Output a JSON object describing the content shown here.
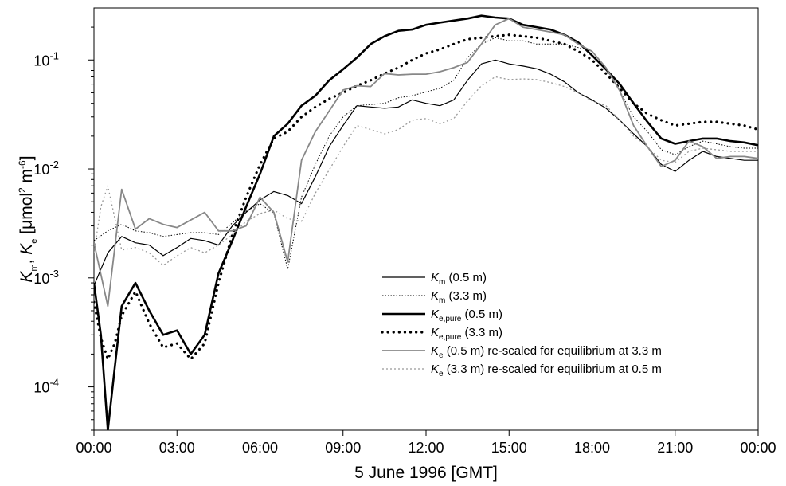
{
  "chart_data": {
    "type": "line",
    "title": "",
    "xlabel": "5 June 1996 [GMT]",
    "ylabel": {
      "base1": "K",
      "sub1": "m",
      "sep": ", ",
      "base2": "K",
      "sub2": "e",
      "unit_pre": " [μmol",
      "unit_sup1": "2",
      "unit_mid": " m",
      "unit_sup2": "-6",
      "unit_post": "]"
    },
    "xlim": [
      0,
      24
    ],
    "ylim": [
      4e-05,
      0.3
    ],
    "yscale": "log",
    "x_ticks": [
      "00:00",
      "03:00",
      "06:00",
      "09:00",
      "12:00",
      "15:00",
      "18:00",
      "21:00",
      "00:00"
    ],
    "y_ticks": [
      {
        "value": 0.0001,
        "base": "10",
        "exp": "-4"
      },
      {
        "value": 0.001,
        "base": "10",
        "exp": "-3"
      },
      {
        "value": 0.01,
        "base": "10",
        "exp": "-2"
      },
      {
        "value": 0.1,
        "base": "10",
        "exp": "-1"
      }
    ],
    "legend_position": "lower-right",
    "series": [
      {
        "name": "Km (0.5 m)",
        "legend": {
          "base": "K",
          "sub": "m",
          "rest": " (0.5 m)"
        },
        "color": "#000000",
        "width": 1.2,
        "dash": "",
        "x": [
          0,
          0.5,
          1,
          1.5,
          2,
          2.5,
          3,
          3.5,
          4,
          4.5,
          5,
          5.5,
          6,
          6.5,
          7,
          7.5,
          8,
          8.5,
          9,
          9.5,
          10,
          10.5,
          11,
          11.5,
          12,
          12.5,
          13,
          13.5,
          14,
          14.5,
          15,
          15.5,
          16,
          16.5,
          17,
          17.5,
          18,
          18.5,
          19,
          19.5,
          20,
          20.5,
          21,
          21.5,
          22,
          22.5,
          23,
          23.5,
          24
        ],
        "y": [
          0.00085,
          0.0017,
          0.0024,
          0.0021,
          0.002,
          0.0016,
          0.0019,
          0.0023,
          0.0022,
          0.002,
          0.003,
          0.004,
          0.0052,
          0.0062,
          0.0057,
          0.0048,
          0.0085,
          0.016,
          0.025,
          0.038,
          0.037,
          0.036,
          0.037,
          0.043,
          0.04,
          0.038,
          0.043,
          0.065,
          0.092,
          0.1,
          0.092,
          0.088,
          0.083,
          0.074,
          0.063,
          0.05,
          0.043,
          0.036,
          0.028,
          0.021,
          0.016,
          0.011,
          0.0095,
          0.012,
          0.0145,
          0.013,
          0.0125,
          0.012,
          0.012
        ]
      },
      {
        "name": "Km (3.3 m)",
        "legend": {
          "base": "K",
          "sub": "m",
          "rest": " (3.3 m)"
        },
        "color": "#000000",
        "width": 1.0,
        "dash": "1.5,2",
        "x": [
          0,
          0.5,
          1,
          1.5,
          2,
          2.5,
          3,
          3.5,
          4,
          4.5,
          5,
          5.5,
          6,
          6.5,
          7,
          7.5,
          8,
          8.5,
          9,
          9.5,
          10,
          10.5,
          11,
          11.5,
          12,
          12.5,
          13,
          13.5,
          14,
          14.5,
          15,
          15.5,
          16,
          16.5,
          17,
          17.5,
          18,
          18.5,
          19,
          19.5,
          20,
          20.5,
          21,
          21.5,
          22,
          22.5,
          23,
          23.5,
          24
        ],
        "y": [
          0.0022,
          0.0027,
          0.0031,
          0.0027,
          0.0026,
          0.0024,
          0.0025,
          0.0026,
          0.0026,
          0.0025,
          0.0032,
          0.0041,
          0.0048,
          0.0039,
          0.0012,
          0.0055,
          0.011,
          0.02,
          0.03,
          0.038,
          0.039,
          0.04,
          0.045,
          0.047,
          0.051,
          0.055,
          0.065,
          0.105,
          0.14,
          0.16,
          0.15,
          0.15,
          0.14,
          0.14,
          0.14,
          0.13,
          0.12,
          0.085,
          0.052,
          0.03,
          0.022,
          0.015,
          0.0135,
          0.016,
          0.018,
          0.017,
          0.016,
          0.0155,
          0.0155
        ]
      },
      {
        "name": "Ke,pure (0.5 m)",
        "legend": {
          "base": "K",
          "sub": "e,pure",
          "rest": " (0.5 m)"
        },
        "color": "#000000",
        "width": 2.6,
        "dash": "",
        "x": [
          0,
          0.25,
          0.5,
          0.75,
          1,
          1.5,
          2,
          2.5,
          3,
          3.5,
          4,
          4.5,
          5,
          5.5,
          6,
          6.5,
          7,
          7.5,
          8,
          8.5,
          9,
          9.5,
          10,
          10.5,
          11,
          11.5,
          12,
          12.5,
          13,
          13.5,
          14,
          14.5,
          15,
          15.5,
          16,
          16.5,
          17,
          17.5,
          18,
          18.5,
          19,
          19.5,
          20,
          20.5,
          21,
          21.5,
          22,
          22.5,
          23,
          23.5,
          24
        ],
        "y": [
          0.0009,
          0.0003,
          4e-05,
          0.00015,
          0.00055,
          0.0009,
          0.0005,
          0.0003,
          0.00033,
          0.0002,
          0.0003,
          0.0011,
          0.0022,
          0.0045,
          0.009,
          0.02,
          0.026,
          0.038,
          0.047,
          0.065,
          0.082,
          0.105,
          0.14,
          0.165,
          0.185,
          0.19,
          0.21,
          0.22,
          0.23,
          0.24,
          0.255,
          0.245,
          0.24,
          0.21,
          0.2,
          0.19,
          0.17,
          0.145,
          0.11,
          0.082,
          0.06,
          0.04,
          0.027,
          0.019,
          0.017,
          0.018,
          0.019,
          0.019,
          0.018,
          0.0175,
          0.0165
        ]
      },
      {
        "name": "Ke,pure (3.3 m)",
        "legend": {
          "base": "K",
          "sub": "e,pure",
          "rest": " (3.3 m)"
        },
        "color": "#000000",
        "width": 3.2,
        "dash": "0.1,7",
        "x": [
          0,
          0.25,
          0.5,
          0.75,
          1,
          1.5,
          2,
          2.5,
          3,
          3.5,
          4,
          4.5,
          5,
          5.5,
          6,
          6.5,
          7,
          7.5,
          8,
          8.5,
          9,
          9.5,
          10,
          10.5,
          11,
          11.5,
          12,
          12.5,
          13,
          13.5,
          14,
          14.5,
          15,
          15.5,
          16,
          16.5,
          17,
          17.5,
          18,
          18.5,
          19,
          19.5,
          20,
          20.5,
          21,
          21.5,
          22,
          22.5,
          23,
          23.5,
          24
        ],
        "y": [
          0.0006,
          0.00028,
          0.00018,
          0.00025,
          0.00045,
          0.00075,
          0.00038,
          0.00023,
          0.00025,
          0.00018,
          0.00025,
          0.0009,
          0.0025,
          0.0055,
          0.011,
          0.019,
          0.022,
          0.03,
          0.037,
          0.044,
          0.05,
          0.058,
          0.065,
          0.075,
          0.085,
          0.1,
          0.115,
          0.125,
          0.14,
          0.155,
          0.16,
          0.165,
          0.17,
          0.165,
          0.16,
          0.15,
          0.14,
          0.12,
          0.1,
          0.075,
          0.055,
          0.04,
          0.032,
          0.028,
          0.025,
          0.026,
          0.027,
          0.027,
          0.026,
          0.025,
          0.023
        ]
      },
      {
        "name": "Ke (0.5 m) re-scaled for equilibrium at 3.3 m",
        "legend": {
          "base": "K",
          "sub": "e",
          "rest": " (0.5 m) re-scaled for equilibrium at 3.3 m"
        },
        "color": "#888888",
        "width": 1.8,
        "dash": "",
        "x": [
          0,
          0.5,
          1,
          1.5,
          2,
          2.5,
          3,
          3.5,
          4,
          4.5,
          5,
          5.5,
          6,
          6.5,
          7,
          7.5,
          8,
          8.5,
          9,
          9.5,
          10,
          10.5,
          11,
          11.5,
          12,
          12.5,
          13,
          13.5,
          14,
          14.5,
          15,
          15.5,
          16,
          16.5,
          17,
          17.5,
          18,
          18.5,
          19,
          19.5,
          20,
          20.5,
          21,
          21.5,
          22,
          22.5,
          23,
          23.5,
          24
        ],
        "y": [
          0.0021,
          0.00055,
          0.0065,
          0.0028,
          0.0035,
          0.0031,
          0.0029,
          0.0034,
          0.004,
          0.0027,
          0.0027,
          0.003,
          0.0055,
          0.004,
          0.0014,
          0.012,
          0.022,
          0.034,
          0.053,
          0.058,
          0.057,
          0.075,
          0.073,
          0.074,
          0.074,
          0.078,
          0.085,
          0.095,
          0.14,
          0.21,
          0.24,
          0.2,
          0.19,
          0.18,
          0.17,
          0.14,
          0.12,
          0.085,
          0.052,
          0.025,
          0.016,
          0.0105,
          0.012,
          0.018,
          0.016,
          0.0125,
          0.013,
          0.013,
          0.0125
        ]
      },
      {
        "name": "Ke (3.3 m) re-scaled for equilibrium at 0.5 m",
        "legend": {
          "base": "K",
          "sub": "e",
          "rest": " (3.3 m) re-scaled for equilibrium at 0.5 m"
        },
        "color": "#999999",
        "width": 1.3,
        "dash": "2,3",
        "x": [
          0,
          0.25,
          0.5,
          1,
          1.5,
          2,
          2.5,
          3,
          3.5,
          4,
          4.5,
          5,
          5.5,
          6,
          6.5,
          7,
          7.5,
          8,
          8.5,
          9,
          9.5,
          10,
          10.5,
          11,
          11.5,
          12,
          12.5,
          13,
          13.5,
          14,
          14.5,
          15,
          15.5,
          16,
          16.5,
          17,
          17.5,
          18,
          18.5,
          19,
          19.5,
          20,
          20.5,
          21,
          21.5,
          22,
          22.5,
          23,
          23.5,
          24
        ],
        "y": [
          0.0017,
          0.0045,
          0.007,
          0.0018,
          0.0019,
          0.0017,
          0.0013,
          0.0016,
          0.0019,
          0.0017,
          0.002,
          0.0025,
          0.0033,
          0.0039,
          0.0042,
          0.0035,
          0.0033,
          0.006,
          0.0098,
          0.016,
          0.025,
          0.023,
          0.021,
          0.023,
          0.028,
          0.029,
          0.026,
          0.029,
          0.042,
          0.058,
          0.07,
          0.066,
          0.067,
          0.066,
          0.062,
          0.057,
          0.05,
          0.042,
          0.038,
          0.028,
          0.02,
          0.016,
          0.012,
          0.0115,
          0.0145,
          0.0155,
          0.015,
          0.0145,
          0.0145,
          0.0145
        ]
      }
    ]
  }
}
